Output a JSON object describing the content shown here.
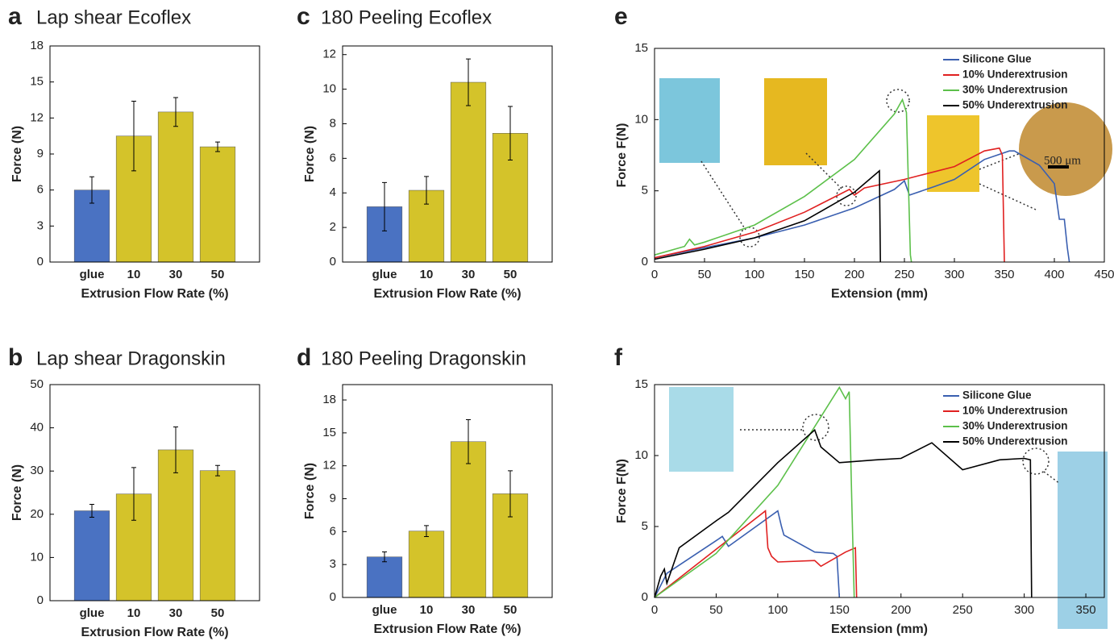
{
  "chart_data": [
    {
      "type": "bar",
      "panel_label": "a",
      "title": "Lap shear Ecoflex",
      "ylabel": "Force (N)",
      "xlabel": "Extrusion Flow Rate (%)",
      "categories": [
        "glue",
        "10",
        "30",
        "50"
      ],
      "values": [
        6.0,
        10.5,
        12.5,
        9.6
      ],
      "errors": [
        1.1,
        2.9,
        1.2,
        0.4
      ],
      "colors": [
        "#4a72c2",
        "#d4c32a",
        "#d4c32a",
        "#d4c32a"
      ],
      "ylim": [
        0,
        18
      ],
      "yticks": [
        0,
        3,
        6,
        9,
        12,
        15,
        18
      ]
    },
    {
      "type": "bar",
      "panel_label": "b",
      "title": "Lap shear Dragonskin",
      "ylabel": "Force (N)",
      "xlabel": "Extrusion Flow Rate (%)",
      "categories": [
        "glue",
        "10",
        "30",
        "50"
      ],
      "values": [
        20.8,
        24.7,
        34.9,
        30.1
      ],
      "errors": [
        1.5,
        6.1,
        5.3,
        1.2
      ],
      "colors": [
        "#4a72c2",
        "#d4c32a",
        "#d4c32a",
        "#d4c32a"
      ],
      "ylim": [
        0,
        50
      ],
      "yticks": [
        0,
        10,
        20,
        30,
        40,
        50
      ]
    },
    {
      "type": "bar",
      "panel_label": "c",
      "title": "180 Peeling Ecoflex",
      "ylabel": "Force (N)",
      "xlabel": "Extrusion Flow Rate (%)",
      "categories": [
        "glue",
        "10",
        "30",
        "50"
      ],
      "values": [
        3.2,
        4.15,
        10.4,
        7.45
      ],
      "errors": [
        1.4,
        0.8,
        1.35,
        1.55
      ],
      "colors": [
        "#4a72c2",
        "#d4c32a",
        "#d4c32a",
        "#d4c32a"
      ],
      "ylim": [
        0,
        12.5
      ],
      "yticks": [
        0,
        2,
        4,
        6,
        8,
        10,
        12
      ]
    },
    {
      "type": "bar",
      "panel_label": "d",
      "title": "180 Peeling Dragonskin",
      "ylabel": "Force (N)",
      "xlabel": "Extrusion Flow Rate (%)",
      "categories": [
        "glue",
        "10",
        "30",
        "50"
      ],
      "values": [
        3.7,
        6.05,
        14.2,
        9.45
      ],
      "errors": [
        0.45,
        0.5,
        2.0,
        2.1
      ],
      "colors": [
        "#4a72c2",
        "#d4c32a",
        "#d4c32a",
        "#d4c32a"
      ],
      "ylim": [
        0,
        19.4
      ],
      "yticks": [
        0,
        3,
        6,
        9,
        12,
        15,
        18
      ]
    },
    {
      "type": "line",
      "panel_label": "e",
      "ylabel": "Force F(N)",
      "xlabel": "Extension (mm)",
      "annotation": "500 μm",
      "legend": "upper right",
      "xlim": [
        0,
        450
      ],
      "xticks": [
        0,
        50,
        100,
        150,
        200,
        250,
        300,
        350,
        400,
        450
      ],
      "ylim": [
        0,
        15
      ],
      "yticks": [
        0,
        5,
        10,
        15
      ],
      "series": [
        {
          "name": "Silicone Glue",
          "color": "#3a5fb0",
          "x": [
            0,
            50,
            100,
            150,
            200,
            240,
            250,
            255,
            280,
            300,
            330,
            355,
            360,
            385,
            400,
            405,
            410,
            413,
            415
          ],
          "values": [
            0.3,
            1.0,
            1.7,
            2.6,
            3.8,
            5.1,
            5.7,
            4.7,
            5.3,
            5.8,
            7.2,
            7.8,
            7.8,
            6.8,
            5.5,
            3,
            3,
            1,
            0
          ]
        },
        {
          "name": "10% Underextrusion",
          "color": "#e02020",
          "x": [
            0,
            50,
            100,
            150,
            195,
            200,
            210,
            250,
            300,
            330,
            345,
            348,
            350
          ],
          "values": [
            0.3,
            1.1,
            2.1,
            3.5,
            5.1,
            4.7,
            5.2,
            5.8,
            6.7,
            7.8,
            8.0,
            7.5,
            0
          ]
        },
        {
          "name": "30% Underextrusion",
          "color": "#5cc04a",
          "x": [
            0,
            30,
            35,
            40,
            50,
            100,
            150,
            200,
            240,
            248,
            252,
            256,
            257
          ],
          "values": [
            0.5,
            1.1,
            1.6,
            1.2,
            1.4,
            2.6,
            4.6,
            7.2,
            10.4,
            11.4,
            10.5,
            0.5,
            0
          ]
        },
        {
          "name": "50% Underextrusion",
          "color": "#000000",
          "x": [
            0,
            50,
            100,
            150,
            200,
            225,
            226
          ],
          "values": [
            0.2,
            0.9,
            1.7,
            2.9,
            4.9,
            6.4,
            0
          ]
        }
      ]
    },
    {
      "type": "line",
      "panel_label": "f",
      "ylabel": "Force F(N)",
      "xlabel": "Extension (mm)",
      "legend": "upper right",
      "xlim": [
        0,
        365
      ],
      "xticks": [
        0,
        50,
        100,
        150,
        200,
        250,
        300,
        350
      ],
      "ylim": [
        0,
        15
      ],
      "yticks": [
        0,
        5,
        10,
        15
      ],
      "series": [
        {
          "name": "Silicone Glue",
          "color": "#3a5fb0",
          "x": [
            0,
            10,
            50,
            55,
            60,
            100,
            103,
            105,
            130,
            145,
            148,
            150
          ],
          "values": [
            0,
            1.7,
            4.0,
            4.3,
            3.6,
            6.1,
            5.0,
            4.4,
            3.2,
            3.1,
            2.9,
            0
          ]
        },
        {
          "name": "10% Underextrusion",
          "color": "#e02020",
          "x": [
            0,
            50,
            90,
            92,
            95,
            100,
            130,
            135,
            155,
            163,
            164
          ],
          "values": [
            0,
            3.4,
            6.1,
            3.5,
            2.9,
            2.5,
            2.6,
            2.2,
            3.2,
            3.5,
            0
          ]
        },
        {
          "name": "30% Underextrusion",
          "color": "#5cc04a",
          "x": [
            0,
            50,
            100,
            150,
            155,
            158,
            160,
            162
          ],
          "values": [
            0,
            3.1,
            7.9,
            14.8,
            14.0,
            14.5,
            7,
            0
          ]
        },
        {
          "name": "50% Underextrusion",
          "color": "#000000",
          "x": [
            0,
            5,
            8,
            10,
            20,
            50,
            60,
            100,
            130,
            135,
            150,
            180,
            200,
            225,
            250,
            280,
            300,
            305,
            306
          ],
          "values": [
            0,
            1.5,
            2.0,
            1.0,
            3.5,
            5.4,
            6.0,
            9.5,
            11.8,
            10.6,
            9.5,
            9.7,
            9.8,
            10.9,
            9.0,
            9.7,
            9.8,
            9.7,
            0
          ]
        }
      ]
    }
  ]
}
